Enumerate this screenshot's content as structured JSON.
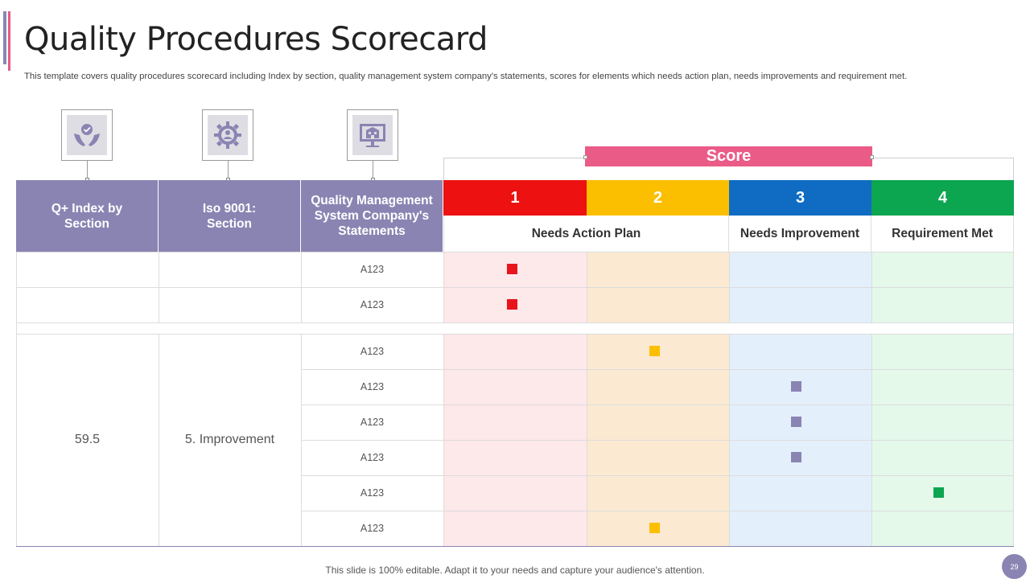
{
  "slide": {
    "title": "Quality Procedures Scorecard",
    "subtitle": "This template covers quality procedures scorecard including Index by section, quality management system company's statements, scores for elements which needs action plan, needs improvements and requirement met.",
    "footer": "This slide is 100% editable. Adapt it to your needs and capture your audience's attention.",
    "page_number": "29"
  },
  "icons": [
    "care-hands-icon",
    "gear-person-icon",
    "monitor-building-icon"
  ],
  "table": {
    "headers": {
      "index": "Q+ Index by Section",
      "section": "Iso 9001: Section",
      "statements": "Quality Management System Company's Statements"
    },
    "score_title": "Score",
    "score_levels": [
      {
        "number": "1",
        "color": "#ee1111"
      },
      {
        "number": "2",
        "color": "#fbbf00"
      },
      {
        "number": "3",
        "color": "#0f6cc2"
      },
      {
        "number": "4",
        "color": "#0ca550"
      }
    ],
    "score_labels": {
      "action_plan": "Needs Action Plan",
      "improvement": "Needs Improvement",
      "requirement_met": "Requirement Met"
    },
    "group_a": {
      "rows": [
        {
          "statement": "A123",
          "score": 1
        },
        {
          "statement": "A123",
          "score": 1
        }
      ]
    },
    "group_b": {
      "index_value": "59.5",
      "section": "5. Improvement",
      "rows": [
        {
          "statement": "A123",
          "score": 2
        },
        {
          "statement": "A123",
          "score": 3
        },
        {
          "statement": "A123",
          "score": 3
        },
        {
          "statement": "A123",
          "score": 3
        },
        {
          "statement": "A123",
          "score": 4
        },
        {
          "statement": "A123",
          "score": 2
        }
      ]
    },
    "column_tints": [
      "#fde8ea",
      "#fce9d2",
      "#e3f0fb",
      "#e4f9ea"
    ],
    "marker_colors": {
      "1": "#e8141c",
      "2": "#fbbf00",
      "3": "#8a84b3",
      "4": "#0ca550"
    }
  }
}
